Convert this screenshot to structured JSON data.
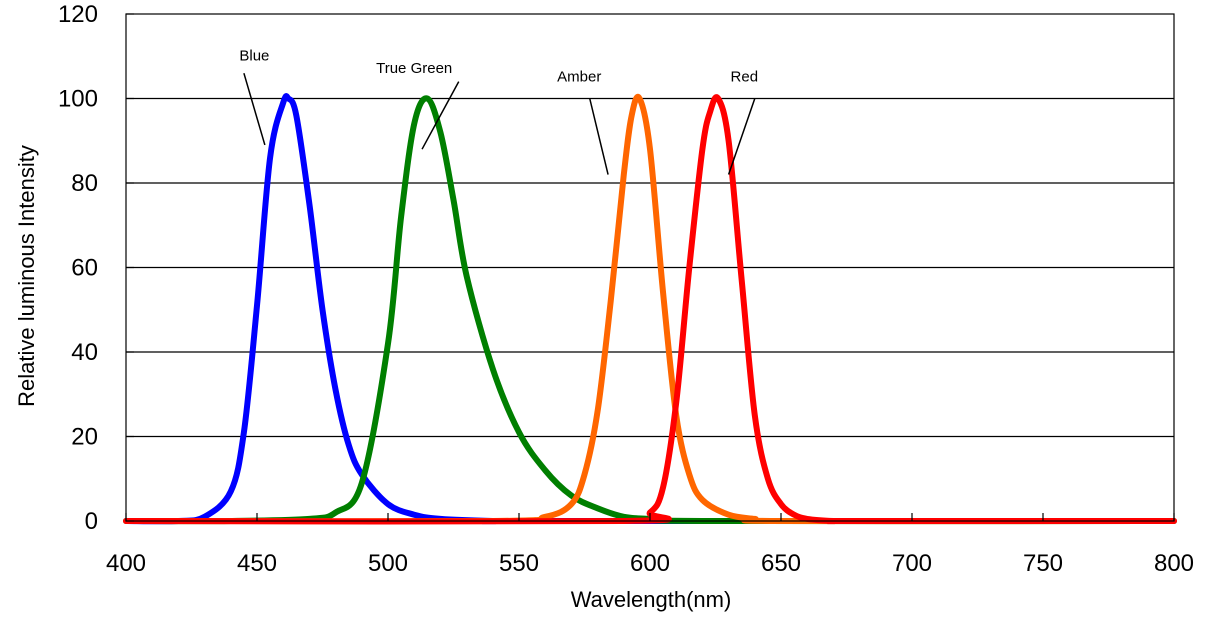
{
  "chart_data": {
    "type": "line",
    "title": "",
    "xlabel": "Wavelength(nm)",
    "ylabel": "Relative luminous Intensity",
    "xlim": [
      400,
      800
    ],
    "ylim": [
      0,
      120
    ],
    "x_ticks": [
      "400",
      "450",
      "500",
      "550",
      "600",
      "650",
      "700",
      "750",
      "800"
    ],
    "y_ticks": [
      "0",
      "20",
      "40",
      "60",
      "80",
      "100",
      "120"
    ],
    "grid": "horizontal",
    "legend": "none",
    "series": [
      {
        "name": "Blue",
        "color": "#0000ff",
        "x": [
          400,
          420,
          430,
          440,
          445,
          450,
          455,
          460,
          462,
          465,
          470,
          475,
          480,
          485,
          490,
          500,
          510,
          520,
          540,
          560,
          800
        ],
        "y": [
          0,
          0,
          1,
          7,
          21,
          51,
          86,
          99,
          100,
          96,
          75,
          50,
          31,
          18,
          11,
          4,
          1.5,
          0.5,
          0,
          0,
          0
        ]
      },
      {
        "name": "True Green",
        "color": "#007f00",
        "x": [
          400,
          440,
          470,
          480,
          490,
          500,
          505,
          510,
          515,
          520,
          525,
          530,
          540,
          550,
          560,
          570,
          580,
          590,
          600,
          620,
          800
        ],
        "y": [
          0,
          0,
          0.5,
          2,
          9,
          42,
          72,
          94,
          100,
          92,
          76,
          58,
          36,
          21,
          12,
          6,
          3,
          1,
          0.5,
          0,
          0
        ]
      },
      {
        "name": "Amber",
        "color": "#ff6600",
        "x": [
          400,
          540,
          560,
          570,
          575,
          580,
          585,
          590,
          593,
          596,
          600,
          605,
          610,
          615,
          620,
          630,
          640,
          650,
          800
        ],
        "y": [
          0,
          0,
          1,
          4,
          11,
          26,
          52,
          82,
          96,
          100,
          88,
          54,
          25,
          11,
          5,
          1.5,
          0.5,
          0,
          0
        ]
      },
      {
        "name": "Red",
        "color": "#ff0000",
        "x": [
          400,
          590,
          600,
          605,
          610,
          615,
          620,
          623,
          626,
          630,
          635,
          640,
          645,
          650,
          655,
          660,
          670,
          680,
          800
        ],
        "y": [
          0,
          0,
          2,
          8,
          28,
          60,
          88,
          97,
          100,
          90,
          57,
          25,
          10,
          4,
          1.5,
          0.5,
          0,
          0,
          0
        ]
      }
    ],
    "annotations": [
      {
        "text": "Blue",
        "series": "Blue",
        "label_x": 449,
        "label_y": 109,
        "line_x": [
          445,
          453
        ],
        "line_y": [
          106,
          89
        ]
      },
      {
        "text": "True Green",
        "series": "True Green",
        "label_x": 510,
        "label_y": 106,
        "line_x": [
          527,
          513
        ],
        "line_y": [
          104,
          88
        ]
      },
      {
        "text": "Amber",
        "series": "Amber",
        "label_x": 573,
        "label_y": 104,
        "line_x": [
          577,
          584
        ],
        "line_y": [
          100,
          82
        ]
      },
      {
        "text": "Red",
        "series": "Red",
        "label_x": 636,
        "label_y": 104,
        "line_x": [
          640,
          630
        ],
        "line_y": [
          100,
          82
        ]
      }
    ]
  }
}
